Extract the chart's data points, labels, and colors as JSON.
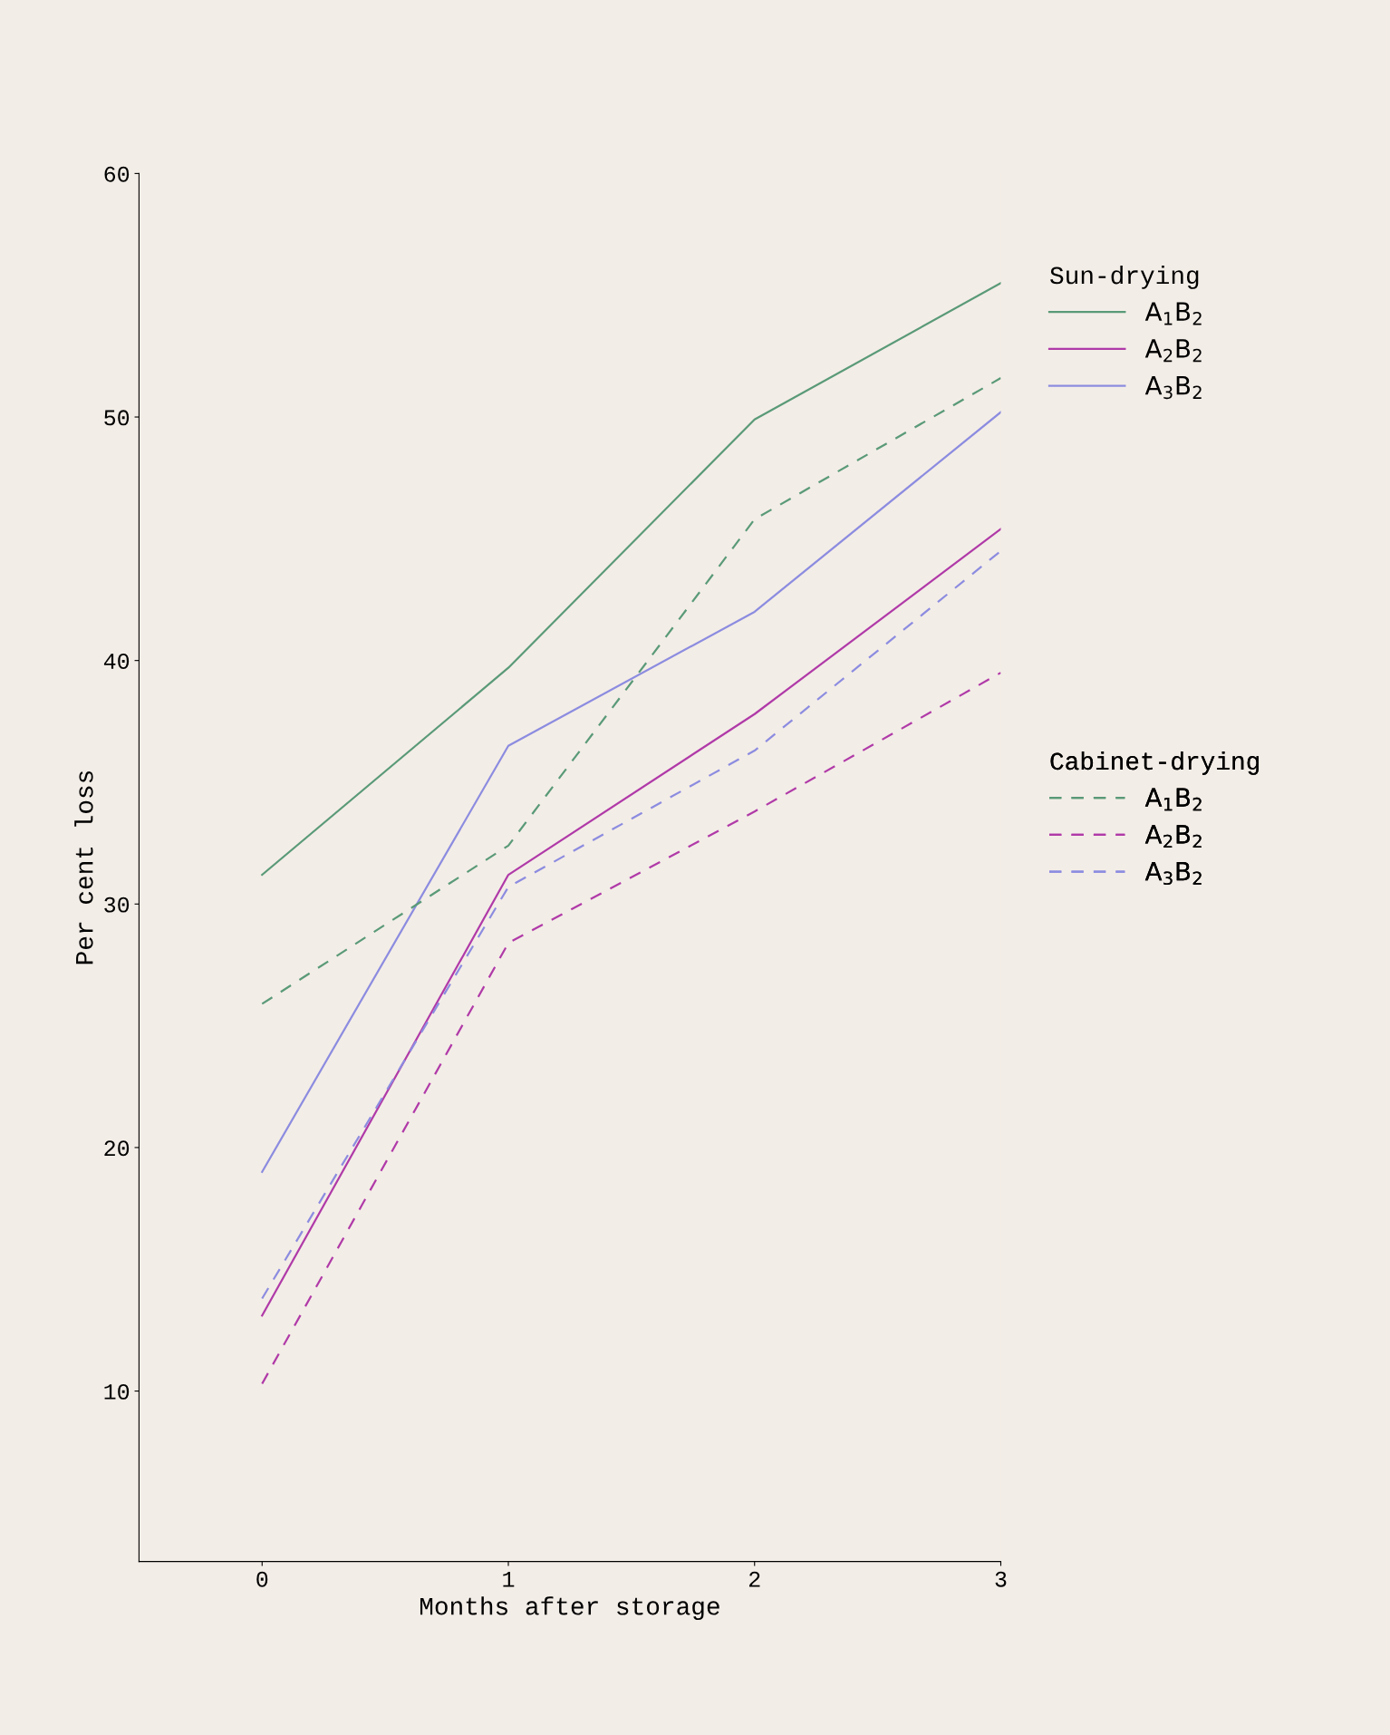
{
  "chart_data": {
    "type": "line",
    "xlabel": "Months after storage",
    "ylabel": "Per cent loss",
    "x": [
      0,
      1,
      2,
      3
    ],
    "xlim": [
      -0.5,
      3
    ],
    "xticks": [
      0,
      1,
      2,
      3
    ],
    "ylim": [
      3,
      60
    ],
    "yticks": [
      10,
      20,
      30,
      40,
      50,
      60
    ],
    "grid": false,
    "legend": "right",
    "annotations": [
      "Sun-drying",
      "Cabinet-drying"
    ],
    "series": [
      {
        "name": "A$_{1}$B$_{2}$",
        "color": "#5a9a78",
        "line_style": "solid",
        "values": [
          31.2,
          39.7,
          49.9,
          55.5
        ]
      },
      {
        "name": "A$_{2}$B$_{2}$",
        "color": "#b03aa8",
        "line_style": "solid",
        "values": [
          13.1,
          31.2,
          37.8,
          45.4
        ]
      },
      {
        "name": "A$_{3}$B$_{2}$",
        "color": "#8c8ce0",
        "line_style": "solid",
        "values": [
          19.0,
          36.5,
          42.0,
          50.2
        ]
      },
      {
        "name": "A$_{1}$B$_{2}$",
        "color": "#5a9a78",
        "line_style": "dashed",
        "values": [
          25.9,
          32.4,
          45.8,
          51.6
        ]
      },
      {
        "name": "A$_{2}$B$_{2}$",
        "color": "#b03aa8",
        "line_style": "dashed",
        "values": [
          10.3,
          28.4,
          33.8,
          39.5
        ]
      },
      {
        "name": "A$_{3}$B$_{2}$",
        "color": "#8c8ce0",
        "line_style": "dashed",
        "values": [
          13.8,
          30.7,
          36.3,
          44.5
        ]
      }
    ]
  }
}
